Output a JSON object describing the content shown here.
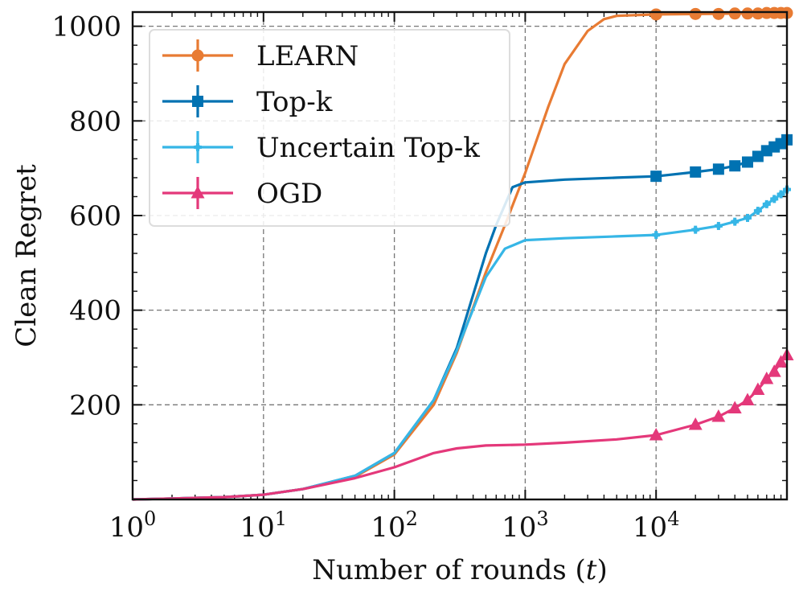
{
  "chart_data": {
    "type": "line",
    "xscale": "log",
    "xlabel": "Number of rounds (t)",
    "ylabel": "Clean Regret",
    "xlim": [
      1,
      100000
    ],
    "ylim": [
      0,
      1030
    ],
    "grid": true,
    "legend_position": "top-left",
    "x_ticks": [
      {
        "value": 1,
        "base": "10",
        "exp": "0"
      },
      {
        "value": 10,
        "base": "10",
        "exp": "1"
      },
      {
        "value": 100,
        "base": "10",
        "exp": "2"
      },
      {
        "value": 1000,
        "base": "10",
        "exp": "3"
      },
      {
        "value": 10000,
        "base": "10",
        "exp": "4"
      }
    ],
    "y_ticks": [
      {
        "value": 200,
        "label": "200"
      },
      {
        "value": 400,
        "label": "400"
      },
      {
        "value": 600,
        "label": "600"
      },
      {
        "value": 800,
        "label": "800"
      },
      {
        "value": 1000,
        "label": "1000"
      }
    ],
    "series": [
      {
        "name": "LEARN",
        "color": "#E87B33",
        "marker": "circle",
        "curve": [
          [
            1,
            0
          ],
          [
            2,
            2
          ],
          [
            5,
            5
          ],
          [
            10,
            10
          ],
          [
            20,
            22
          ],
          [
            50,
            48
          ],
          [
            100,
            95
          ],
          [
            200,
            200
          ],
          [
            300,
            310
          ],
          [
            500,
            480
          ],
          [
            700,
            580
          ],
          [
            1000,
            690
          ],
          [
            1500,
            830
          ],
          [
            2000,
            920
          ],
          [
            3000,
            990
          ],
          [
            4000,
            1015
          ],
          [
            5000,
            1022
          ],
          [
            10000,
            1025
          ],
          [
            100000,
            1028
          ]
        ],
        "markers": [
          10000,
          20000,
          30000,
          40000,
          50000,
          60000,
          70000,
          80000,
          90000,
          100000
        ],
        "marker_values": [
          1025,
          1026,
          1026,
          1027,
          1027,
          1027,
          1028,
          1028,
          1028,
          1028
        ]
      },
      {
        "name": "Top-k",
        "color": "#0072B2",
        "marker": "square",
        "curve": [
          [
            1,
            0
          ],
          [
            2,
            2
          ],
          [
            5,
            5
          ],
          [
            10,
            10
          ],
          [
            20,
            22
          ],
          [
            50,
            50
          ],
          [
            100,
            98
          ],
          [
            200,
            210
          ],
          [
            300,
            320
          ],
          [
            500,
            520
          ],
          [
            600,
            580
          ],
          [
            800,
            660
          ],
          [
            1000,
            670
          ],
          [
            2000,
            676
          ],
          [
            5000,
            680
          ],
          [
            10000,
            683
          ],
          [
            20000,
            692
          ],
          [
            30000,
            698
          ],
          [
            40000,
            705
          ],
          [
            50000,
            713
          ],
          [
            60000,
            725
          ],
          [
            70000,
            737
          ],
          [
            80000,
            745
          ],
          [
            90000,
            752
          ],
          [
            100000,
            760
          ]
        ],
        "markers": [
          10000,
          20000,
          30000,
          40000,
          50000,
          60000,
          70000,
          80000,
          90000,
          100000
        ],
        "marker_values": [
          683,
          692,
          698,
          705,
          713,
          725,
          737,
          745,
          752,
          760
        ]
      },
      {
        "name": "Uncertain Top-k",
        "color": "#36B6E6",
        "marker": "plus",
        "curve": [
          [
            1,
            0
          ],
          [
            2,
            2
          ],
          [
            5,
            5
          ],
          [
            10,
            10
          ],
          [
            20,
            22
          ],
          [
            50,
            50
          ],
          [
            100,
            98
          ],
          [
            200,
            210
          ],
          [
            300,
            315
          ],
          [
            500,
            470
          ],
          [
            700,
            530
          ],
          [
            1000,
            548
          ],
          [
            2000,
            552
          ],
          [
            5000,
            556
          ],
          [
            10000,
            559
          ],
          [
            20000,
            570
          ],
          [
            30000,
            578
          ],
          [
            40000,
            587
          ],
          [
            50000,
            595
          ],
          [
            60000,
            610
          ],
          [
            70000,
            624
          ],
          [
            80000,
            635
          ],
          [
            90000,
            645
          ],
          [
            100000,
            655
          ]
        ],
        "markers": [
          10000,
          20000,
          30000,
          40000,
          50000,
          60000,
          70000,
          80000,
          90000,
          100000
        ],
        "marker_values": [
          559,
          570,
          578,
          587,
          595,
          610,
          624,
          635,
          645,
          655
        ]
      },
      {
        "name": "OGD",
        "color": "#E4387A",
        "marker": "triangle",
        "curve": [
          [
            1,
            0
          ],
          [
            2,
            2
          ],
          [
            5,
            5
          ],
          [
            10,
            10
          ],
          [
            20,
            22
          ],
          [
            50,
            45
          ],
          [
            100,
            68
          ],
          [
            200,
            98
          ],
          [
            300,
            108
          ],
          [
            500,
            114
          ],
          [
            1000,
            116
          ],
          [
            2000,
            120
          ],
          [
            5000,
            127
          ],
          [
            10000,
            136
          ],
          [
            20000,
            158
          ],
          [
            30000,
            175
          ],
          [
            40000,
            193
          ],
          [
            50000,
            210
          ],
          [
            60000,
            232
          ],
          [
            70000,
            255
          ],
          [
            80000,
            270
          ],
          [
            90000,
            290
          ],
          [
            100000,
            305
          ]
        ],
        "markers": [
          10000,
          20000,
          30000,
          40000,
          50000,
          60000,
          70000,
          80000,
          90000,
          100000
        ],
        "marker_values": [
          136,
          158,
          175,
          193,
          210,
          232,
          255,
          270,
          290,
          305
        ]
      }
    ]
  }
}
